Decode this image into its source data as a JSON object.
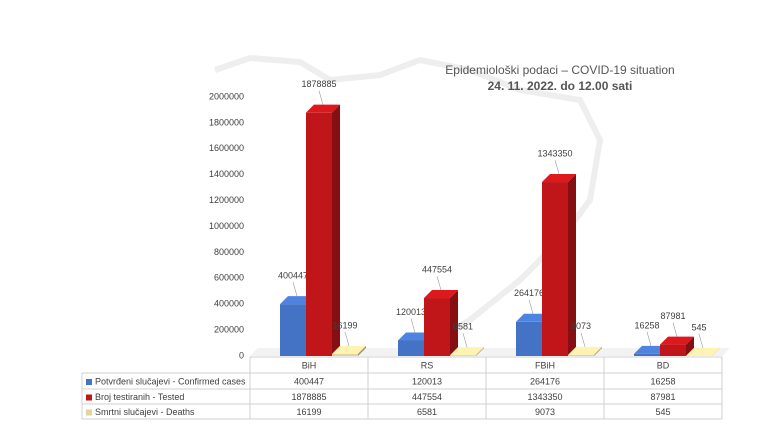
{
  "chart_data": {
    "type": "bar3d",
    "title": "Epidemiološki podaci – COVID-19 situation",
    "subtitle": "24. 11. 2022. do 12.00 sati",
    "categories": [
      "BiH",
      "RS",
      "FBiH",
      "BD"
    ],
    "series": [
      {
        "name": "Potvrđeni slučajevi - Confirmed cases",
        "color": "#4472c4",
        "values": [
          400447,
          120013,
          264176,
          16258
        ]
      },
      {
        "name": "Broj testiranih - Tested",
        "color": "#c0161a",
        "values": [
          1878885,
          447554,
          1343350,
          87981
        ]
      },
      {
        "name": "Smrtni slučajevi - Deaths",
        "color": "#e6d39a",
        "values": [
          16199,
          6581,
          9073,
          545
        ]
      }
    ],
    "ylim": [
      0,
      2000000
    ],
    "yticks": [
      0,
      200000,
      400000,
      600000,
      800000,
      1000000,
      1200000,
      1400000,
      1600000,
      1800000,
      2000000
    ]
  }
}
